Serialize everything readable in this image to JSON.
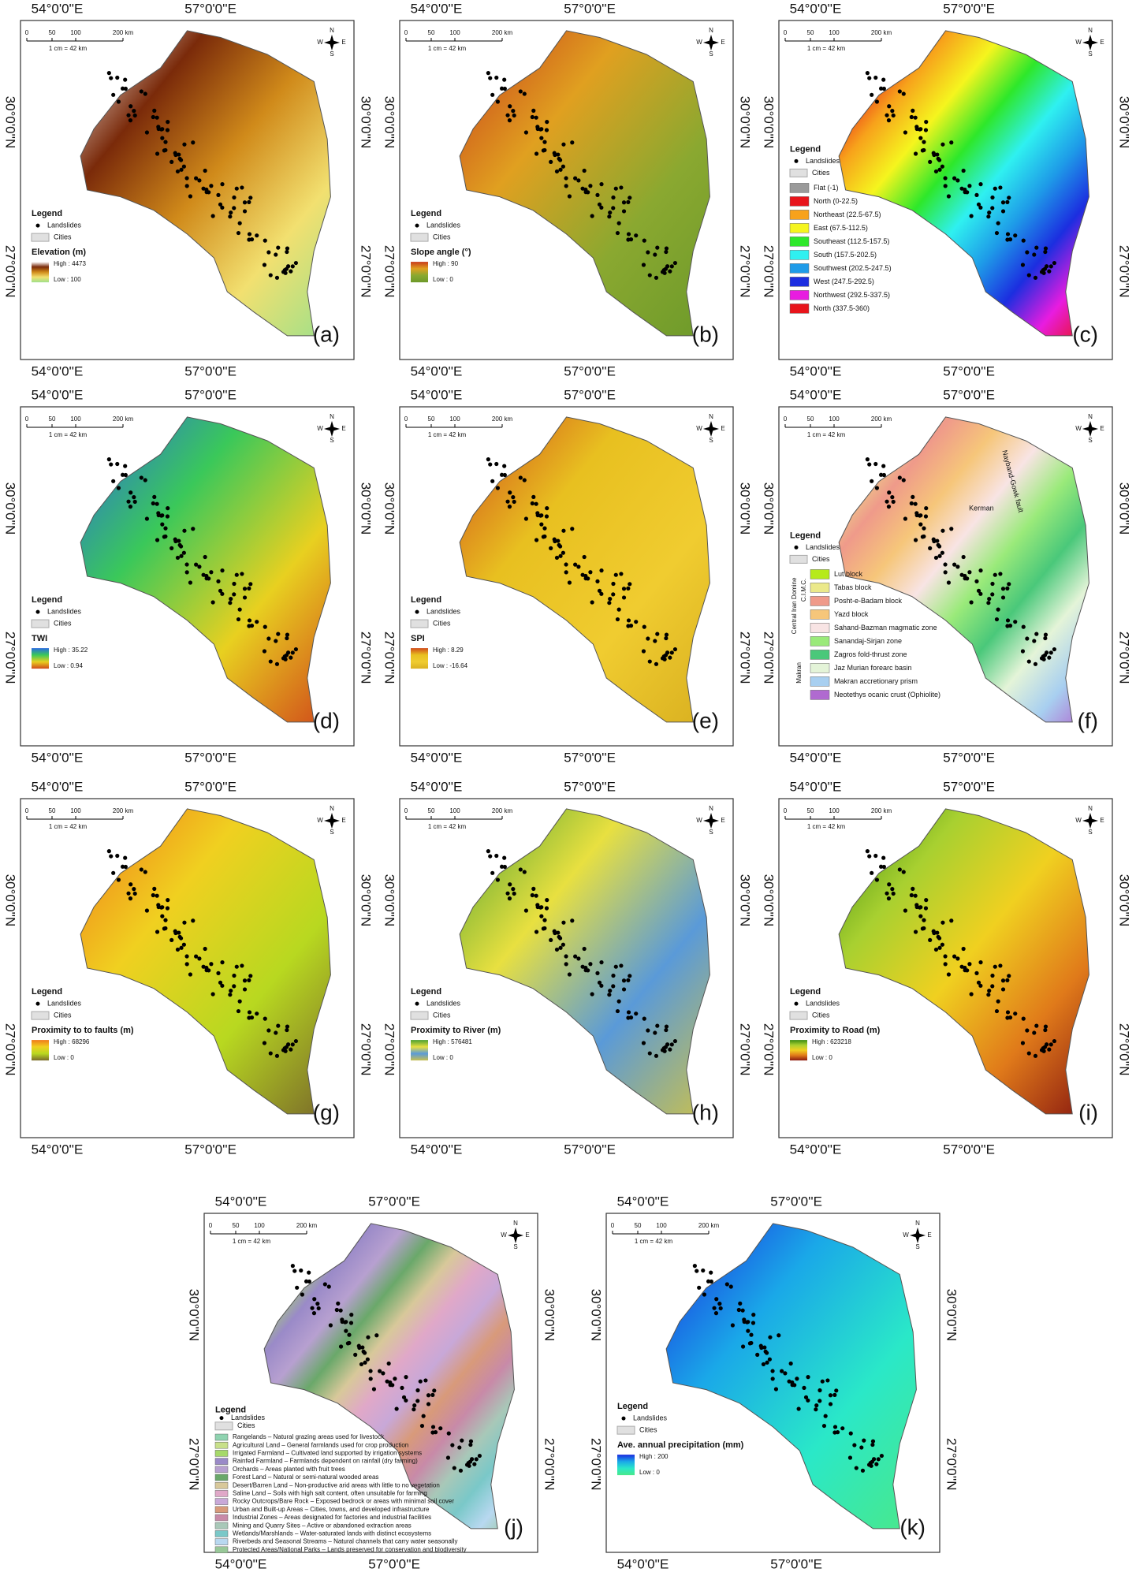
{
  "frame": {
    "lon": [
      "54°0'0''E",
      "57°0'0''E"
    ],
    "lat": [
      "30°0'0''N",
      "27°0'0''N"
    ],
    "scale": [
      "0",
      "50",
      "100",
      "200 km"
    ],
    "scale_note": "1 cm = 42 km",
    "compass": [
      "N",
      "W",
      "E",
      "S"
    ],
    "legend_title": "Legend",
    "landslides": "Landslides",
    "cities": "Cities"
  },
  "panels": [
    {
      "label": "(a)",
      "ramp_title": "Elevation (m)",
      "high": "High : 4473",
      "low": "Low : 100",
      "colors": [
        "#ffffff",
        "#7a2a0a",
        "#d08a1a",
        "#f2e070",
        "#9ee08a"
      ]
    },
    {
      "label": "(b)",
      "ramp_title": "Slope angle (°)",
      "high": "High : 90",
      "low": "Low : 0",
      "colors": [
        "#c73a1a",
        "#e0a020",
        "#8aa830",
        "#6d9a2a"
      ]
    },
    {
      "label": "(c)",
      "classes": [
        {
          "name": "Flat (-1)",
          "color": "#9a9a9a"
        },
        {
          "name": "North (0-22.5)",
          "color": "#e8141b"
        },
        {
          "name": "Northeast (22.5-67.5)",
          "color": "#f7a21b"
        },
        {
          "name": "East (67.5-112.5)",
          "color": "#f5f51e"
        },
        {
          "name": "Southeast (112.5-157.5)",
          "color": "#2ee82a"
        },
        {
          "name": "South (157.5-202.5)",
          "color": "#2ff0f0"
        },
        {
          "name": "Southwest (202.5-247.5)",
          "color": "#1e9be8"
        },
        {
          "name": "West (247.5-292.5)",
          "color": "#1c2ee0"
        },
        {
          "name": "Northwest (292.5-337.5)",
          "color": "#e81ce0"
        },
        {
          "name": "North (337.5-360)",
          "color": "#e8141b"
        }
      ]
    },
    {
      "label": "(d)",
      "ramp_title": "TWI",
      "high": "High : 35.22",
      "low": "Low : 0.94",
      "colors": [
        "#2a6ae0",
        "#3ac85a",
        "#e8d020",
        "#d04a1a"
      ]
    },
    {
      "label": "(e)",
      "ramp_title": "SPI",
      "high": "High : 8.29",
      "low": "Low : -16.64",
      "colors": [
        "#d04a1a",
        "#e8c020",
        "#f0cc30",
        "#d9b020"
      ]
    },
    {
      "label": "(f)",
      "groups": [
        "Central Iran Domine",
        "C.I.M.C.",
        "Makran"
      ],
      "faults": [
        "Nayband-Gowk fault",
        "Kerman"
      ],
      "classes": [
        {
          "name": "Lut block",
          "color": "#b6ea1a"
        },
        {
          "name": "Tabas block",
          "color": "#ebe98a"
        },
        {
          "name": "Posht-e-Badam block",
          "color": "#ef9a8a"
        },
        {
          "name": "Yazd block",
          "color": "#f6c67a"
        },
        {
          "name": "Sahand-Bazman magmatic zone",
          "color": "#f8e4e4"
        },
        {
          "name": "Sanandaj-Sirjan zone",
          "color": "#9aea7a"
        },
        {
          "name": "Zagros fold-thrust zone",
          "color": "#4ac87a"
        },
        {
          "name": "Jaz Murian forearc basin",
          "color": "#e4f4d8"
        },
        {
          "name": "Makran accretionary prism",
          "color": "#a8cff0"
        },
        {
          "name": "Neotethys ocanic crust (Ophiolite)",
          "color": "#b06ad0"
        }
      ]
    },
    {
      "label": "(g)",
      "ramp_title": "Proximity to to faults (m)",
      "high": "High : 68296",
      "low": "Low : 0",
      "colors": [
        "#f07a1a",
        "#f0d020",
        "#b8d820",
        "#7a6a2a"
      ]
    },
    {
      "label": "(h)",
      "ramp_title": "Proximity to River (m)",
      "high": "High : 576481",
      "low": "Low : 0",
      "colors": [
        "#4aa030",
        "#e8e040",
        "#5a9ad8",
        "#c8c050"
      ]
    },
    {
      "label": "(i)",
      "ramp_title": "Proximity to Road (m)",
      "high": "High : 623218",
      "low": "Low : 0",
      "colors": [
        "#3a8a10",
        "#a8d030",
        "#f0d020",
        "#e07a1a",
        "#8a1a10"
      ]
    },
    {
      "label": "(j)",
      "classes": [
        {
          "name": "Rangelands – Natural grazing areas used for livestock",
          "color": "#8fd3b0"
        },
        {
          "name": "Agricultural Land – General farmlands used for crop production",
          "color": "#c8e08a"
        },
        {
          "name": "Irrigated Farmland – Cultivated land supported by irrigation systems",
          "color": "#a6d96a"
        },
        {
          "name": "Rainfed Farmland – Farmlands dependent on rainfall (dry farming)",
          "color": "#9a8ac8"
        },
        {
          "name": "Orchards – Areas planted with fruit trees",
          "color": "#b7a0d0"
        },
        {
          "name": "Forest Land – Natural or semi-natural wooded areas",
          "color": "#6aa86a"
        },
        {
          "name": "Desert/Barren Land – Non-productive arid areas with little to no vegetation",
          "color": "#d8c89a"
        },
        {
          "name": "Saline Land – Soils with high salt content, often unsuitable for farming",
          "color": "#e0a8c8"
        },
        {
          "name": "Rocky Outcrops/Bare Rock – Exposed bedrock or areas with minimal soil cover",
          "color": "#c8a8d8"
        },
        {
          "name": "Urban and Built-up Areas – Cities, towns, and developed infrastructure",
          "color": "#d89a7a"
        },
        {
          "name": "Industrial Zones – Areas designated for factories and industrial facilities",
          "color": "#c88aa8"
        },
        {
          "name": "Mining and Quarry Sites – Active or abandoned extraction areas",
          "color": "#a8c8b8"
        },
        {
          "name": "Wetlands/Marshlands – Water-saturated lands with distinct ecosystems",
          "color": "#7ac8c8"
        },
        {
          "name": "Riverbeds and Seasonal Streams – Natural channels that carry water seasonally",
          "color": "#b8d8f0"
        },
        {
          "name": "Protected Areas/National Parks – Lands preserved for conservation and biodiversity",
          "color": "#98c898"
        }
      ]
    },
    {
      "label": "(k)",
      "ramp_title": "Ave. annual precipitation (mm)",
      "high": "High : 200",
      "low": "Low : 0",
      "colors": [
        "#1a2ae0",
        "#1aa8e8",
        "#2ae8c8",
        "#4ae88a"
      ]
    }
  ]
}
